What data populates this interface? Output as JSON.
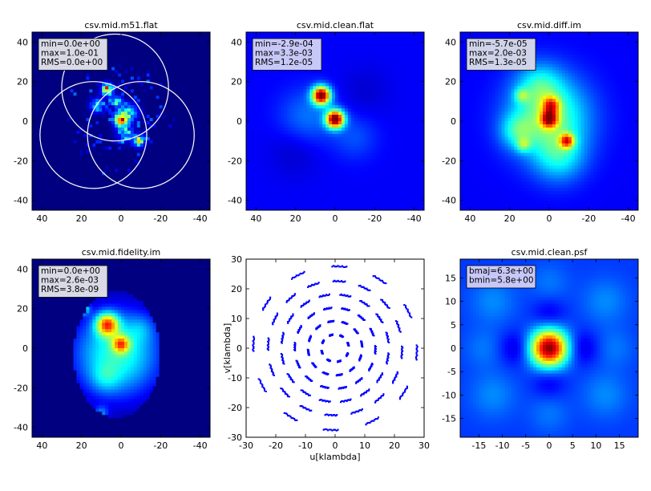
{
  "figure": {
    "background": "#ffffff"
  },
  "chart_data": [
    {
      "type": "heatmap",
      "title": "csv.mid.m51.flat",
      "xlim": [
        45,
        -45
      ],
      "ylim": [
        -45,
        45
      ],
      "xticks": [
        "40",
        "20",
        "0",
        "-20",
        "-40"
      ],
      "yticks": [
        "40",
        "20",
        "0",
        "-20",
        "-40"
      ],
      "stats": [
        "min=0.0e+00",
        "max=1.0e-01",
        "RMS=0.0e+00"
      ],
      "stats_bg": "#d9dae6",
      "circles": [
        {
          "cx": 3,
          "cy": 17,
          "r": 27
        },
        {
          "cx": 14,
          "cy": -7,
          "r": 27
        },
        {
          "cx": -10,
          "cy": -7,
          "r": 27
        }
      ],
      "blobs": [
        {
          "x": 0,
          "y": 1,
          "s": 2.5,
          "a": 1.0
        },
        {
          "x": 7,
          "y": 16,
          "s": 2.0,
          "a": 0.85
        },
        {
          "x": -9,
          "y": -10,
          "s": 2.0,
          "a": 0.7
        },
        {
          "x": 2,
          "y": 10,
          "s": 2.0,
          "a": 0.45
        },
        {
          "x": -5,
          "y": 5,
          "s": 3.0,
          "a": 0.35
        },
        {
          "x": 12,
          "y": 8,
          "s": 2.5,
          "a": 0.4
        },
        {
          "x": -2,
          "y": -6,
          "s": 3.0,
          "a": 0.35
        }
      ],
      "speckle": true
    },
    {
      "type": "heatmap",
      "title": "csv.mid.clean.flat",
      "xlim": [
        45,
        -45
      ],
      "ylim": [
        -45,
        45
      ],
      "xticks": [
        "40",
        "20",
        "0",
        "-20",
        "-40"
      ],
      "yticks": [
        "40",
        "20",
        "0",
        "-20",
        "-40"
      ],
      "stats": [
        "min=-2.9e-04",
        "max=3.3e-03",
        "RMS=1.2e-05"
      ],
      "stats_bg": "#c8c8f8",
      "base": 0.12,
      "blobs": [
        {
          "x": 0,
          "y": 1,
          "s": 3.2,
          "a": 0.9
        },
        {
          "x": 7,
          "y": 13,
          "s": 3.2,
          "a": 0.9
        },
        {
          "x": 14,
          "y": 2,
          "s": 10,
          "a": 0.12
        },
        {
          "x": -10,
          "y": -8,
          "s": 8,
          "a": 0.08
        },
        {
          "x": 20,
          "y": -15,
          "s": 9,
          "a": -0.05
        },
        {
          "x": -15,
          "y": 15,
          "s": 9,
          "a": -0.04
        }
      ]
    },
    {
      "type": "heatmap",
      "title": "csv.mid.diff.im",
      "xlim": [
        45,
        -45
      ],
      "ylim": [
        -45,
        45
      ],
      "xticks": [
        "40",
        "20",
        "0",
        "-20",
        "-40"
      ],
      "yticks": [
        "40",
        "20",
        "0",
        "-20",
        "-40"
      ],
      "stats": [
        "min=-5.7e-05",
        "max=2.0e-03",
        "RMS=1.3e-05"
      ],
      "stats_bg": "#d0d4ea",
      "base": 0.12,
      "blobs": [
        {
          "x": 0,
          "y": 2,
          "s": 14,
          "a": 0.36
        },
        {
          "x": 5,
          "y": 18,
          "s": 8,
          "a": 0.18
        },
        {
          "x": -5,
          "y": -18,
          "s": 9,
          "a": 0.2
        },
        {
          "x": 16,
          "y": -5,
          "s": 6,
          "a": 0.2
        },
        {
          "x": 0,
          "y": 1,
          "s": 3.0,
          "a": 0.55
        },
        {
          "x": -1,
          "y": 8,
          "s": 3.0,
          "a": 0.4
        },
        {
          "x": -9,
          "y": -10,
          "s": 2.5,
          "a": 0.5
        },
        {
          "x": 13,
          "y": -12,
          "s": 2.5,
          "a": 0.2
        },
        {
          "x": 14,
          "y": 13,
          "s": 2.5,
          "a": 0.2
        }
      ]
    },
    {
      "type": "heatmap",
      "title": "csv.mid.fidelity.im",
      "xlim": [
        45,
        -45
      ],
      "ylim": [
        -45,
        45
      ],
      "xticks": [
        "40",
        "20",
        "0",
        "-20",
        "-40"
      ],
      "yticks": [
        "40",
        "20",
        "0",
        "-20",
        "-40"
      ],
      "stats": [
        "min=0.0e+00",
        "max=2.6e-03",
        "RMS=3.8e-09"
      ],
      "stats_bg": "#d9dae6",
      "mask": {
        "cx": 2,
        "cy": -3,
        "rx": 22,
        "ry": 32
      },
      "base": 0.0,
      "blobs": [
        {
          "x": 2,
          "y": -3,
          "s": 16,
          "a": 0.42
        },
        {
          "x": 7,
          "y": 12,
          "s": 4.0,
          "a": 0.6
        },
        {
          "x": 0,
          "y": 2,
          "s": 3.0,
          "a": 0.45
        },
        {
          "x": 19,
          "y": 20,
          "s": 2.0,
          "a": 0.4
        },
        {
          "x": -22,
          "y": -17,
          "s": 2.0,
          "a": 0.3
        },
        {
          "x": 10,
          "y": -33,
          "s": 2.5,
          "a": 0.2
        },
        {
          "x": 8,
          "y": -15,
          "s": 5,
          "a": 0.12
        },
        {
          "x": -10,
          "y": 10,
          "s": 5,
          "a": 0.1
        }
      ]
    },
    {
      "type": "scatter",
      "title": "",
      "xlabel": "u[klambda]",
      "ylabel": "v[klambda]",
      "xlim": [
        -30,
        30
      ],
      "ylim": [
        -30,
        30
      ],
      "xticks": [
        "-30",
        "-20",
        "-10",
        "0",
        "10",
        "20",
        "30"
      ],
      "yticks": [
        "30",
        "20",
        "10",
        "0",
        "-10",
        "-20",
        "-30"
      ],
      "point_color": "#0000ff",
      "rings": [
        {
          "r": 4.5,
          "n": 8,
          "span": 14,
          "offset": 10
        },
        {
          "r": 9,
          "n": 12,
          "span": 12,
          "offset": 3
        },
        {
          "r": 13.5,
          "n": 14,
          "span": 11,
          "offset": 18
        },
        {
          "r": 18,
          "n": 16,
          "span": 11,
          "offset": 6
        },
        {
          "r": 22.5,
          "n": 16,
          "span": 10,
          "offset": 14
        },
        {
          "r": 27.5,
          "n": 12,
          "span": 10,
          "offset": 22
        }
      ]
    },
    {
      "type": "heatmap",
      "title": "csv.mid.clean.psf",
      "xlim": [
        -19,
        19
      ],
      "ylim": [
        -19,
        19
      ],
      "xticks": [
        "-15",
        "-10",
        "-5",
        "0",
        "5",
        "10",
        "15"
      ],
      "yticks": [
        "15",
        "10",
        "5",
        "0",
        "-5",
        "-10",
        "-15"
      ],
      "stats": [
        "bmaj=6.3e+00",
        "bmin=5.8e+00"
      ],
      "stats_bg": "#c8c8f8",
      "base": 0.18,
      "blobs": [
        {
          "x": 0,
          "y": 0,
          "s": 2.8,
          "a": 0.82
        },
        {
          "x": 7,
          "y": 0,
          "s": 2.5,
          "a": -0.1
        },
        {
          "x": -7,
          "y": 0,
          "s": 2.5,
          "a": -0.1
        },
        {
          "x": 0,
          "y": 7,
          "s": 2.5,
          "a": -0.08
        },
        {
          "x": 0,
          "y": -7,
          "s": 2.5,
          "a": -0.08
        },
        {
          "x": 12,
          "y": 10,
          "s": 3.5,
          "a": 0.08
        },
        {
          "x": -12,
          "y": 10,
          "s": 3.5,
          "a": 0.08
        },
        {
          "x": 12,
          "y": -10,
          "s": 3.5,
          "a": 0.08
        },
        {
          "x": -12,
          "y": -10,
          "s": 3.5,
          "a": 0.08
        },
        {
          "x": 14,
          "y": 0,
          "s": 3,
          "a": 0.06
        },
        {
          "x": -14,
          "y": 0,
          "s": 3,
          "a": 0.06
        },
        {
          "x": 0,
          "y": 14,
          "s": 3,
          "a": 0.06
        },
        {
          "x": 0,
          "y": -14,
          "s": 3,
          "a": 0.06
        }
      ]
    }
  ]
}
